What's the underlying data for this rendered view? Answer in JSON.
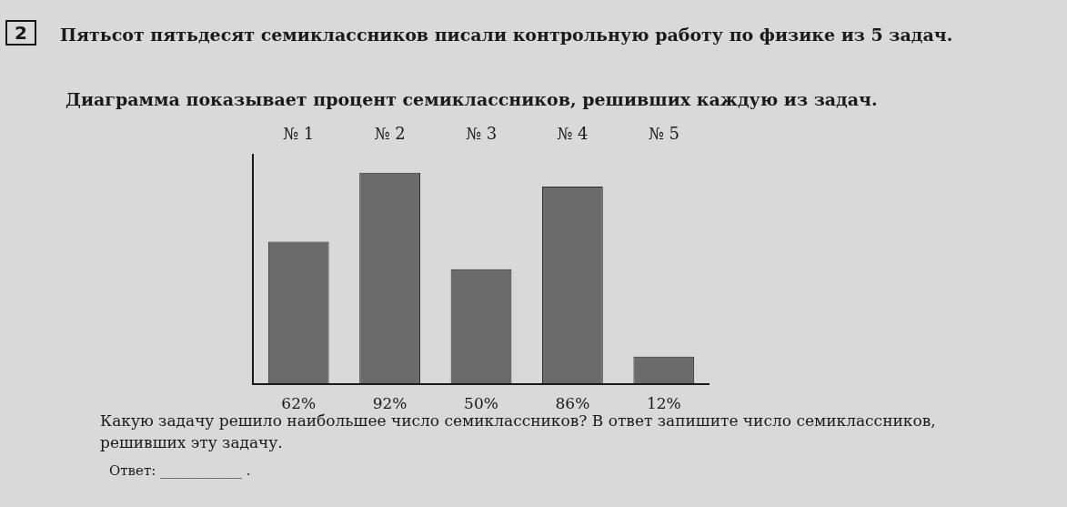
{
  "chart_data": {
    "type": "bar",
    "title": "Пятьсот пятьдесят семиклассников писали контрольную работу по физике из 5 задач.",
    "subtitle": "Диаграмма показывает процент семиклассников, решивших каждую из задач.",
    "categories": [
      "№ 1",
      "№ 2",
      "№ 3",
      "№ 4",
      "№ 5"
    ],
    "values": [
      62,
      92,
      50,
      86,
      12
    ],
    "value_labels": [
      "62%",
      "92%",
      "50%",
      "86%",
      "12%"
    ],
    "color": "#6b6b6b",
    "annotations": [
      "2",
      "Какую задачу решило наибольшее число семиклассников? В ответ запишите число семиклассников, решивших эту задачу.",
      "Ответ: ____________ ."
    ]
  }
}
